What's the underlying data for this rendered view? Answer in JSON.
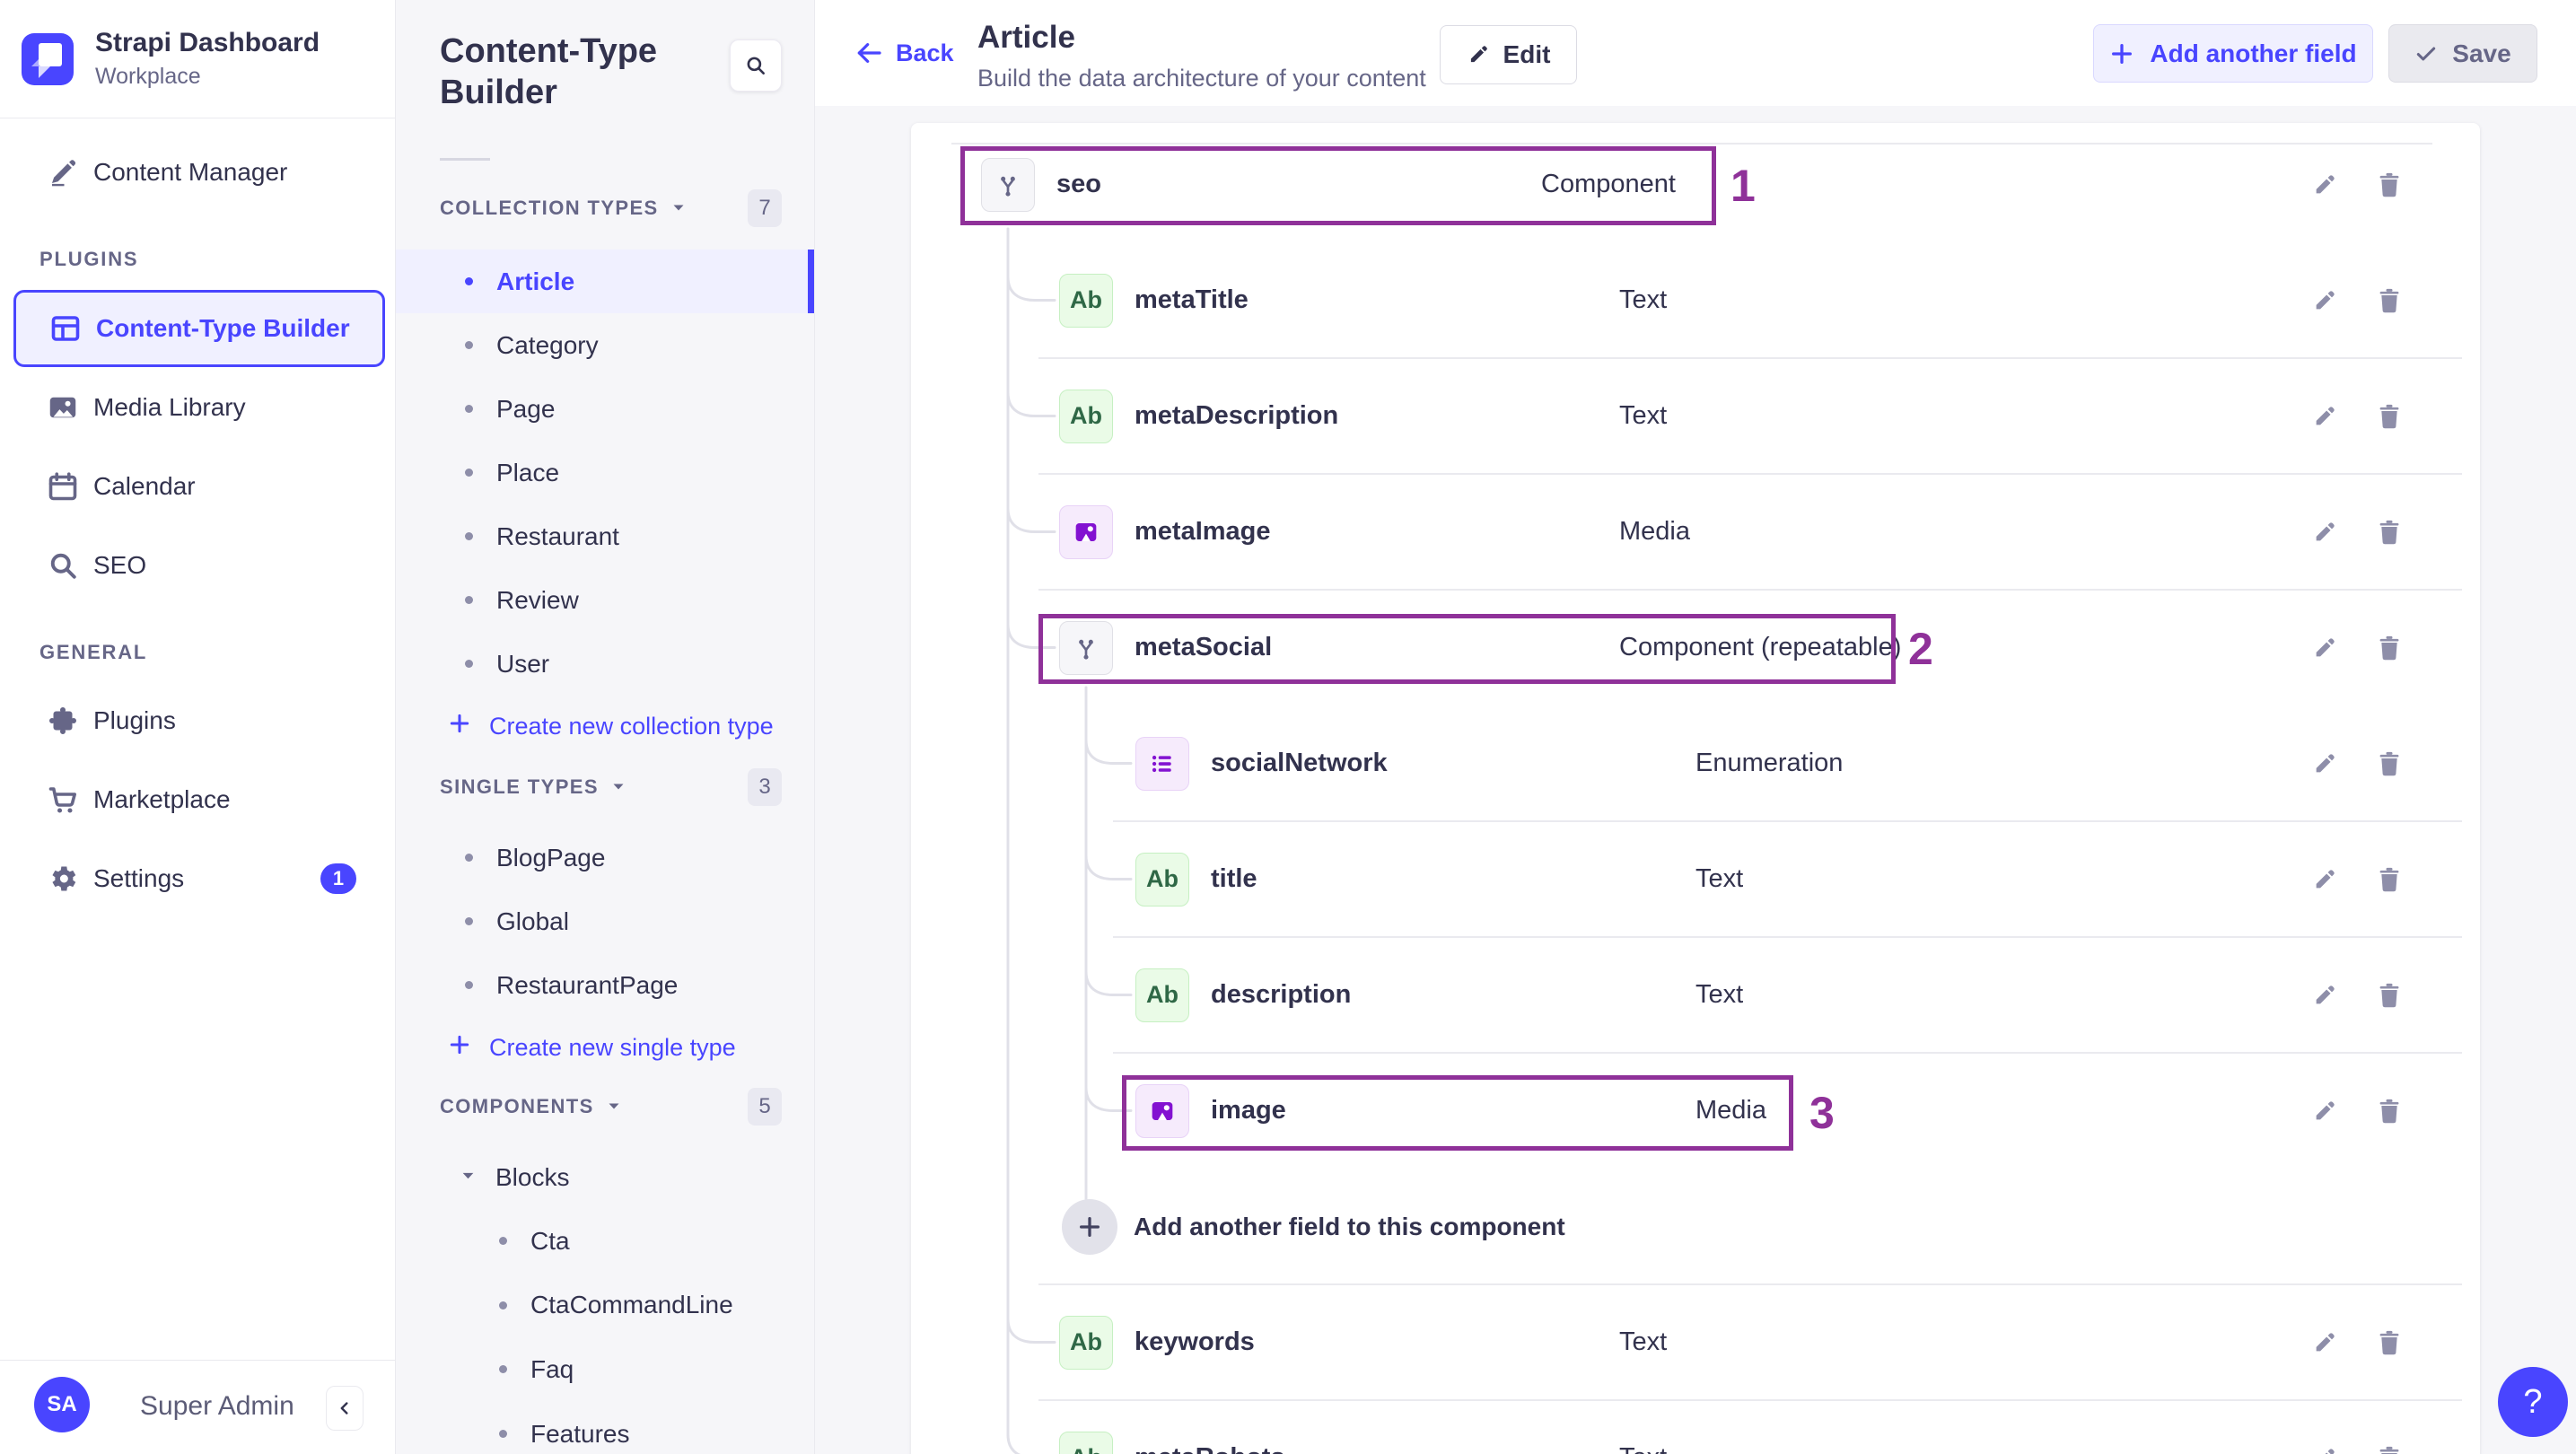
{
  "brand": {
    "title": "Strapi Dashboard",
    "subtitle": "Workplace"
  },
  "colors": {
    "accent": "#4945ff",
    "annotation": "#8f3199",
    "active_bg": "#f0f0ff",
    "text_dark": "#32324d",
    "text_gray": "#666687"
  },
  "nav": {
    "sections": [
      {
        "label": "",
        "items": [
          {
            "id": "content-manager",
            "label": "Content Manager",
            "icon": "pen-icon",
            "active": false
          }
        ]
      },
      {
        "label": "PLUGINS",
        "items": [
          {
            "id": "content-type-builder",
            "label": "Content-Type Builder",
            "icon": "layout-icon",
            "active": true
          },
          {
            "id": "media-library",
            "label": "Media Library",
            "icon": "picture-icon",
            "active": false
          },
          {
            "id": "calendar",
            "label": "Calendar",
            "icon": "calendar-icon",
            "active": false
          },
          {
            "id": "seo",
            "label": "SEO",
            "icon": "search-icon",
            "active": false
          }
        ]
      },
      {
        "label": "GENERAL",
        "items": [
          {
            "id": "plugins",
            "label": "Plugins",
            "icon": "puzzle-icon",
            "active": false
          },
          {
            "id": "marketplace",
            "label": "Marketplace",
            "icon": "cart-icon",
            "active": false
          },
          {
            "id": "settings",
            "label": "Settings",
            "icon": "gear-icon",
            "active": false,
            "badge": "1"
          }
        ]
      }
    ],
    "user": {
      "initials": "SA",
      "name": "Super Admin"
    }
  },
  "panel": {
    "title": "Content-Type Builder",
    "groups": [
      {
        "label": "COLLECTION TYPES",
        "count": "7",
        "active": "Article",
        "items": [
          "Article",
          "Category",
          "Page",
          "Place",
          "Restaurant",
          "Review",
          "User"
        ],
        "create": "Create new collection type"
      },
      {
        "label": "SINGLE TYPES",
        "count": "3",
        "active": "",
        "items": [
          "BlogPage",
          "Global",
          "RestaurantPage"
        ],
        "create": "Create new single type"
      },
      {
        "label": "COMPONENTS",
        "count": "5",
        "active": "",
        "category": "Blocks",
        "items": [
          "Cta",
          "CtaCommandLine",
          "Faq",
          "Features"
        ],
        "create": ""
      }
    ]
  },
  "header": {
    "back": "Back",
    "title": "Article",
    "subtitle": "Build the data architecture of your content",
    "edit": "Edit",
    "add_field": "Add another field",
    "save": "Save"
  },
  "fields": [
    {
      "kind": "field",
      "name": "seo",
      "type": "Component",
      "icon": "component",
      "level": 1,
      "annotation": 0,
      "divider": false
    },
    {
      "kind": "field",
      "name": "metaTitle",
      "type": "Text",
      "icon": "text",
      "level": 2,
      "divider": true
    },
    {
      "kind": "field",
      "name": "metaDescription",
      "type": "Text",
      "icon": "text",
      "level": 2,
      "divider": true
    },
    {
      "kind": "field",
      "name": "metaImage",
      "type": "Media",
      "icon": "media",
      "level": 2,
      "divider": true
    },
    {
      "kind": "field",
      "name": "metaSocial",
      "type": "Component (repeatable)",
      "icon": "component",
      "level": 2,
      "annotation": 1,
      "divider": false
    },
    {
      "kind": "field",
      "name": "socialNetwork",
      "type": "Enumeration",
      "icon": "enum",
      "level": 3,
      "divider": true
    },
    {
      "kind": "field",
      "name": "title",
      "type": "Text",
      "icon": "text",
      "level": 3,
      "divider": true
    },
    {
      "kind": "field",
      "name": "description",
      "type": "Text",
      "icon": "text",
      "level": 3,
      "divider": true
    },
    {
      "kind": "field",
      "name": "image",
      "type": "Media",
      "icon": "media",
      "level": 3,
      "annotation": 2,
      "divider": false
    },
    {
      "kind": "add",
      "label": "Add another field to this component",
      "divider": true
    },
    {
      "kind": "field",
      "name": "keywords",
      "type": "Text",
      "icon": "text",
      "level": 2,
      "divider": true
    },
    {
      "kind": "field",
      "name": "metaRobots",
      "type": "Text",
      "icon": "text",
      "level": 2,
      "divider": false
    }
  ],
  "icon_glyphs": {
    "text": "Ab"
  },
  "annotations": {
    "labels": [
      "1",
      "2",
      "3"
    ]
  },
  "help": {
    "label": "?"
  }
}
